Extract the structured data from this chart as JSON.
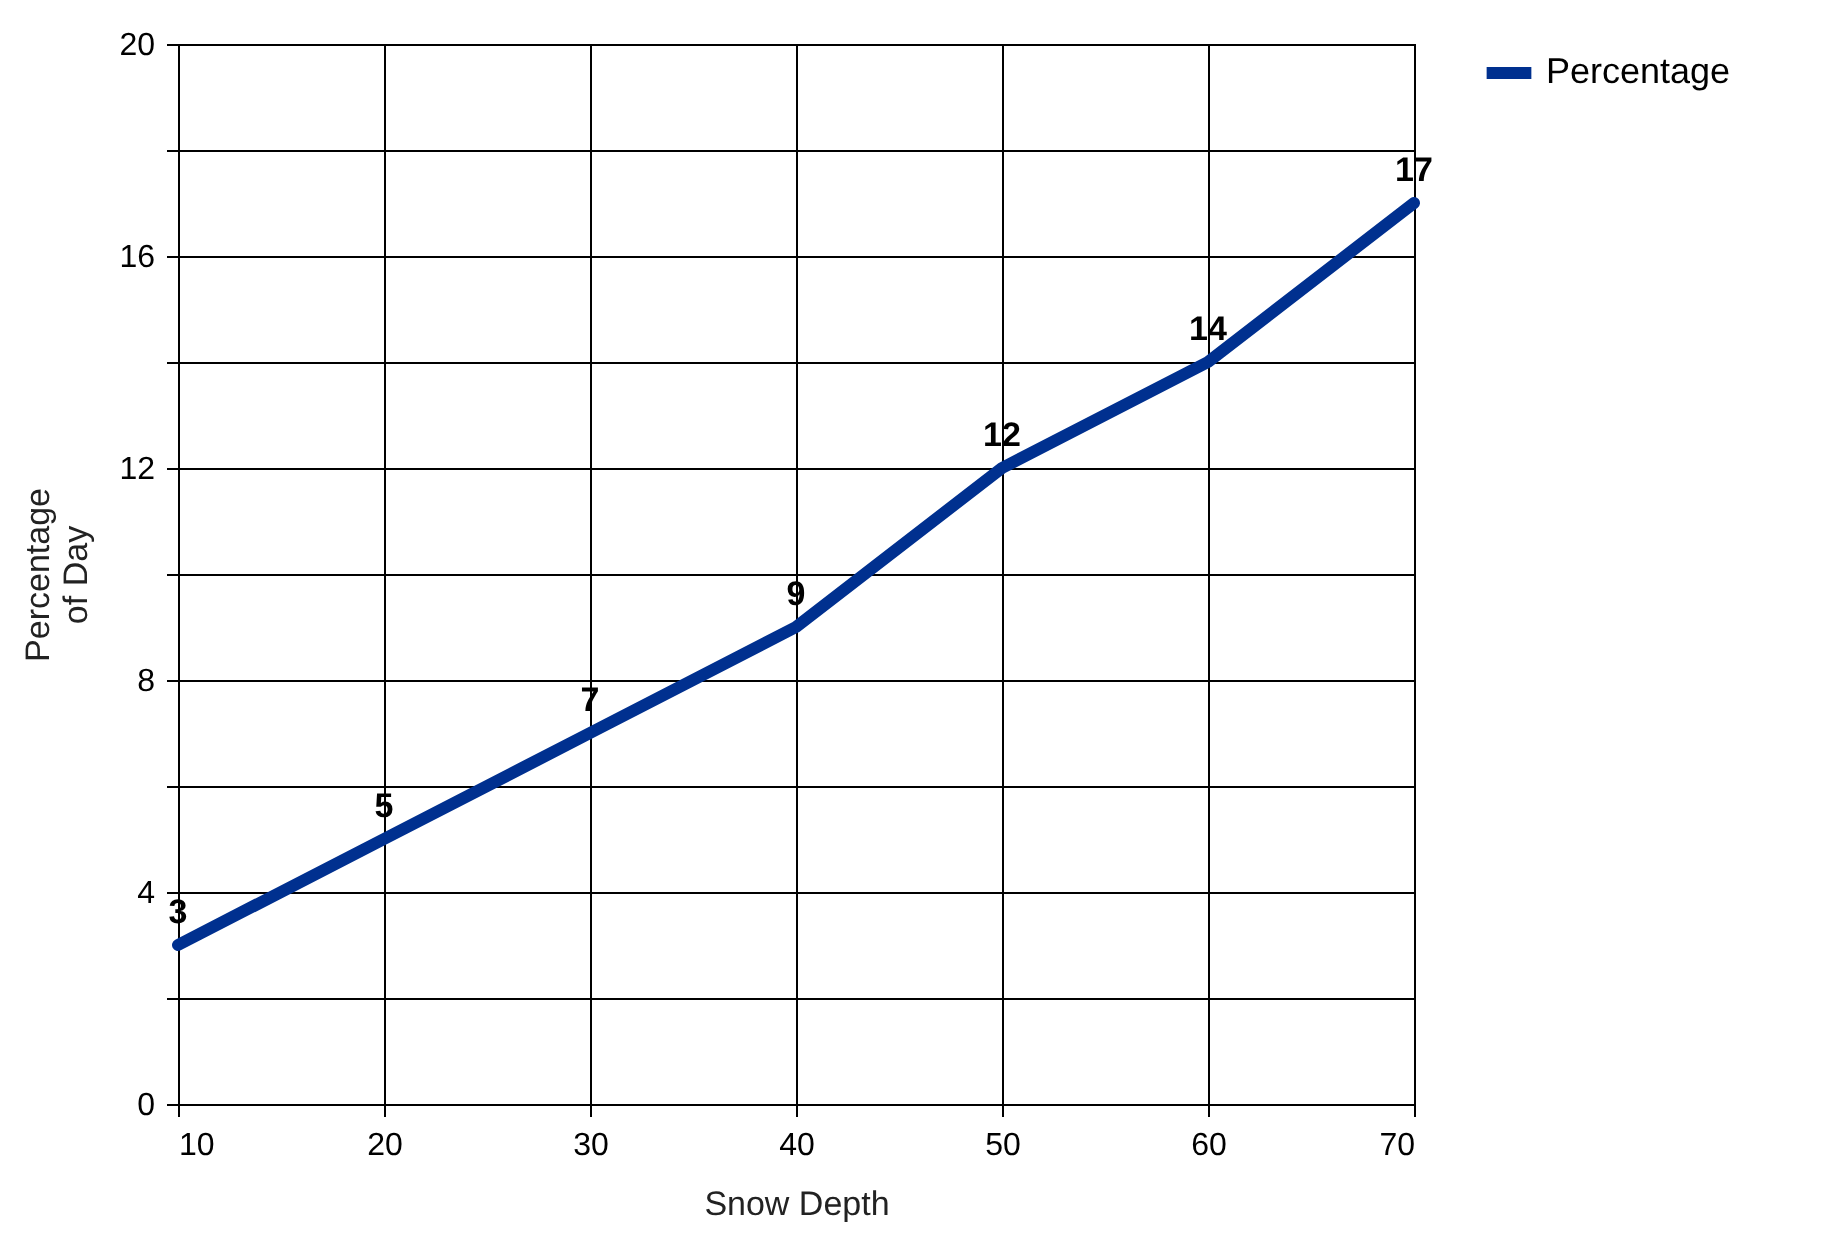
{
  "chart_data": {
    "type": "line",
    "xlabel": "Snow Depth",
    "ylabel": "Percentage\nof Day",
    "x": [
      10,
      20,
      30,
      40,
      50,
      60,
      70
    ],
    "series": [
      {
        "name": "Percentage",
        "color": "#00308f",
        "values": [
          3,
          5,
          7,
          9,
          12,
          14,
          17
        ]
      }
    ],
    "xlim": [
      10,
      70
    ],
    "xticks": [
      10,
      20,
      30,
      40,
      50,
      60,
      70
    ],
    "ylim": [
      0,
      20
    ],
    "yticks": [
      0,
      {
        "value": 2,
        "label": null
      },
      4,
      {
        "value": 6,
        "label": null
      },
      8,
      {
        "value": 10,
        "label": null
      },
      12,
      {
        "value": 14,
        "label": null
      },
      16,
      {
        "value": 18,
        "label": null
      },
      20
    ],
    "grid": true,
    "legend": "right",
    "data_labels": true,
    "marker": "none",
    "line_style": "solid"
  }
}
